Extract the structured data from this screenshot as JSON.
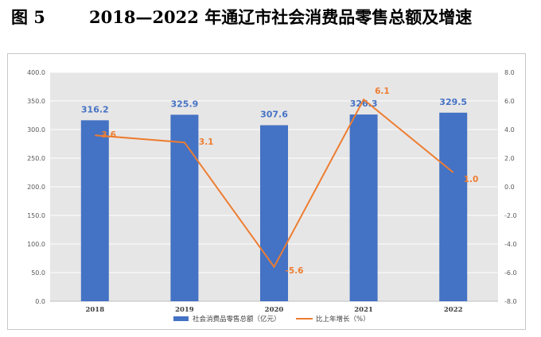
{
  "figure": {
    "label": "图 5",
    "title": "2018—2022 年通辽市社会消费品零售总额及增速"
  },
  "colors": {
    "bar": "#4472c4",
    "line": "#ed7d31",
    "plot_background": "#e7e6e6",
    "gridline": "#ffffff"
  },
  "chart_data": {
    "type": "bar",
    "categories": [
      "2018",
      "2019",
      "2020",
      "2021",
      "2022"
    ],
    "series": [
      {
        "name": "社会消费品零售总额（亿元）",
        "type": "bar",
        "axis": "left",
        "values": [
          316.2,
          325.9,
          307.6,
          326.3,
          329.5
        ],
        "labels": [
          "316.2",
          "325.9",
          "307.6",
          "326.3",
          "329.5"
        ]
      },
      {
        "name": "比上年增长（%）",
        "type": "line",
        "axis": "right",
        "values": [
          3.6,
          3.1,
          -5.6,
          6.1,
          1.0
        ],
        "labels": [
          "3.6",
          "3.1",
          "-5.6",
          "6.1",
          "1.0"
        ]
      }
    ],
    "y_left": {
      "ylim": [
        0,
        400
      ],
      "ticks": [
        0,
        50,
        100,
        150,
        200,
        250,
        300,
        350,
        400
      ],
      "tick_labels": [
        "0.0",
        "50.0",
        "100.0",
        "150.0",
        "200.0",
        "250.0",
        "300.0",
        "350.0",
        "400.0"
      ]
    },
    "y_right": {
      "ylim": [
        -8,
        8
      ],
      "ticks": [
        -8,
        -6,
        -4,
        -2,
        0,
        2,
        4,
        6,
        8
      ],
      "tick_labels": [
        "-8.0",
        "-6.0",
        "-4.0",
        "-2.0",
        "0.0",
        "2.0",
        "4.0",
        "6.0",
        "8.0"
      ]
    },
    "grid": true,
    "legend_position": "bottom"
  }
}
